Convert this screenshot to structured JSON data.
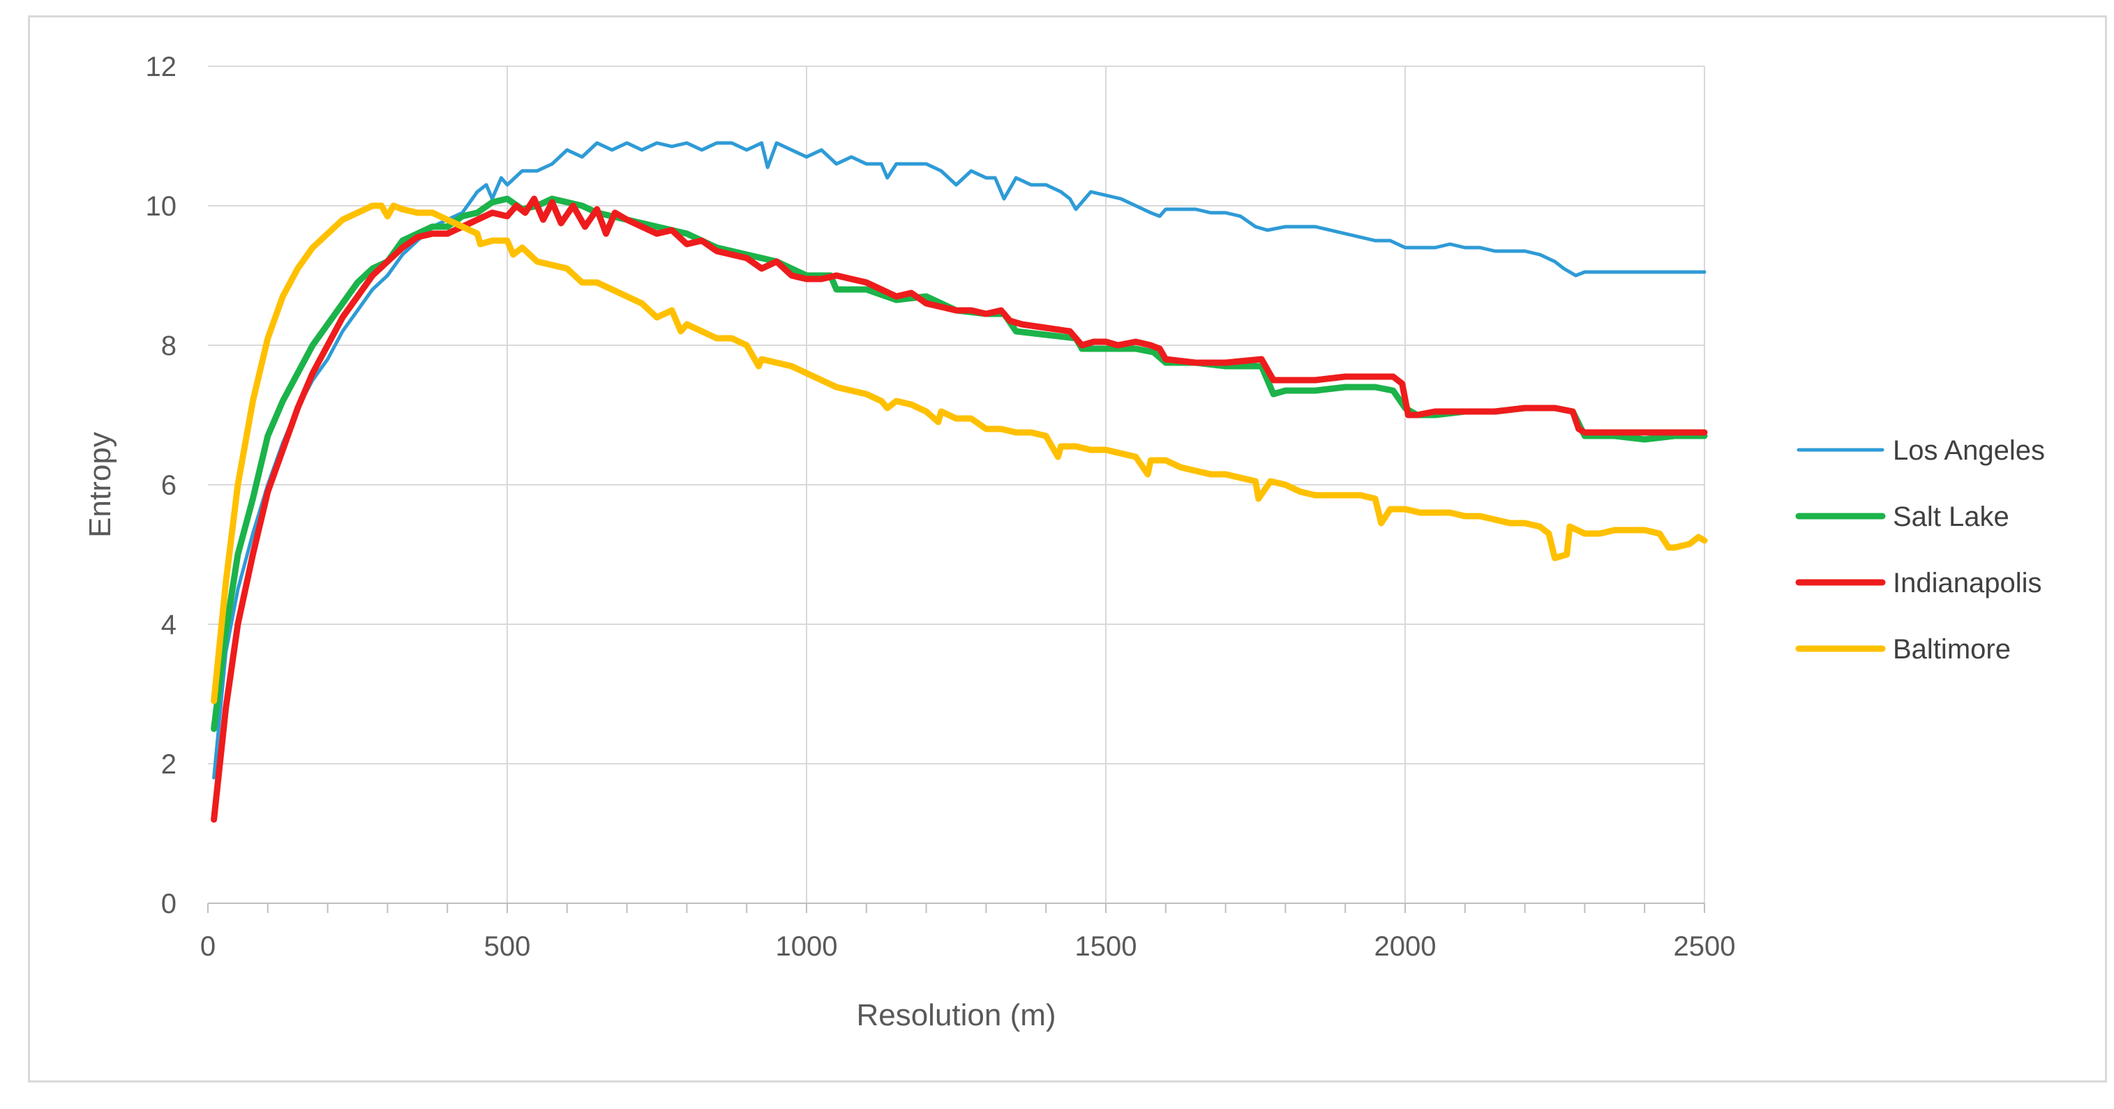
{
  "chart_data": {
    "type": "line",
    "title": "",
    "xlabel": "Resolution (m)",
    "ylabel": "Entropy",
    "xlim": [
      0,
      2500
    ],
    "ylim": [
      0,
      12
    ],
    "xticks": [
      0,
      500,
      1000,
      1500,
      2000,
      2500
    ],
    "yticks": [
      0,
      2,
      4,
      6,
      8,
      10,
      12
    ],
    "grid": true,
    "legend_position": "right",
    "series": [
      {
        "name": "Los Angeles",
        "color": "#2e9bd6",
        "x": [
          10,
          30,
          50,
          75,
          100,
          125,
          150,
          175,
          200,
          225,
          250,
          275,
          300,
          325,
          350,
          375,
          400,
          425,
          450,
          465,
          475,
          490,
          500,
          525,
          550,
          575,
          600,
          625,
          650,
          675,
          700,
          725,
          750,
          775,
          800,
          825,
          850,
          875,
          900,
          925,
          935,
          950,
          975,
          1000,
          1025,
          1050,
          1075,
          1100,
          1125,
          1135,
          1150,
          1175,
          1200,
          1225,
          1250,
          1275,
          1300,
          1315,
          1330,
          1350,
          1375,
          1400,
          1425,
          1440,
          1450,
          1475,
          1500,
          1525,
          1550,
          1575,
          1590,
          1600,
          1625,
          1650,
          1675,
          1700,
          1725,
          1750,
          1770,
          1800,
          1825,
          1850,
          1875,
          1900,
          1925,
          1950,
          1975,
          2000,
          2025,
          2050,
          2075,
          2100,
          2125,
          2150,
          2175,
          2200,
          2225,
          2250,
          2265,
          2285,
          2300,
          2350,
          2400,
          2450,
          2500
        ],
        "y": [
          1.8,
          3.6,
          4.5,
          5.3,
          6.0,
          6.6,
          7.1,
          7.5,
          7.8,
          8.2,
          8.5,
          8.8,
          9.0,
          9.3,
          9.5,
          9.7,
          9.8,
          9.9,
          10.2,
          10.3,
          10.1,
          10.4,
          10.3,
          10.5,
          10.5,
          10.6,
          10.8,
          10.7,
          10.9,
          10.8,
          10.9,
          10.8,
          10.9,
          10.85,
          10.9,
          10.8,
          10.9,
          10.9,
          10.8,
          10.9,
          10.55,
          10.9,
          10.8,
          10.7,
          10.8,
          10.6,
          10.7,
          10.6,
          10.6,
          10.4,
          10.6,
          10.6,
          10.6,
          10.5,
          10.3,
          10.5,
          10.4,
          10.4,
          10.1,
          10.4,
          10.3,
          10.3,
          10.2,
          10.1,
          9.95,
          10.2,
          10.15,
          10.1,
          10.0,
          9.9,
          9.85,
          9.95,
          9.95,
          9.95,
          9.9,
          9.9,
          9.85,
          9.7,
          9.65,
          9.7,
          9.7,
          9.7,
          9.65,
          9.6,
          9.55,
          9.5,
          9.5,
          9.4,
          9.4,
          9.4,
          9.45,
          9.4,
          9.4,
          9.35,
          9.35,
          9.35,
          9.3,
          9.2,
          9.1,
          9.0,
          9.05,
          9.05,
          9.05,
          9.05,
          9.05
        ]
      },
      {
        "name": "Salt Lake",
        "color": "#1bb34a",
        "x": [
          10,
          30,
          50,
          75,
          100,
          125,
          150,
          175,
          200,
          225,
          250,
          275,
          300,
          325,
          350,
          375,
          400,
          425,
          450,
          475,
          500,
          525,
          550,
          575,
          600,
          625,
          650,
          675,
          700,
          750,
          800,
          850,
          900,
          950,
          1000,
          1040,
          1050,
          1100,
          1150,
          1200,
          1250,
          1300,
          1330,
          1350,
          1400,
          1450,
          1460,
          1500,
          1550,
          1580,
          1600,
          1650,
          1700,
          1760,
          1780,
          1800,
          1850,
          1900,
          1950,
          1980,
          2000,
          2020,
          2050,
          2100,
          2150,
          2200,
          2250,
          2280,
          2300,
          2350,
          2400,
          2450,
          2500
        ],
        "y": [
          2.5,
          3.9,
          5.0,
          5.8,
          6.7,
          7.2,
          7.6,
          8.0,
          8.3,
          8.6,
          8.9,
          9.1,
          9.2,
          9.5,
          9.6,
          9.7,
          9.7,
          9.85,
          9.9,
          10.05,
          10.1,
          9.95,
          10.0,
          10.1,
          10.05,
          10.0,
          9.9,
          9.85,
          9.8,
          9.7,
          9.6,
          9.4,
          9.3,
          9.2,
          9.0,
          9.0,
          8.8,
          8.8,
          8.65,
          8.7,
          8.5,
          8.45,
          8.45,
          8.2,
          8.15,
          8.1,
          7.95,
          7.95,
          7.95,
          7.9,
          7.75,
          7.75,
          7.7,
          7.7,
          7.3,
          7.35,
          7.35,
          7.4,
          7.4,
          7.35,
          7.1,
          7.0,
          7.0,
          7.05,
          7.05,
          7.1,
          7.1,
          7.05,
          6.7,
          6.7,
          6.65,
          6.7,
          6.7
        ]
      },
      {
        "name": "Indianapolis",
        "color": "#ee1c1c",
        "x": [
          10,
          30,
          50,
          75,
          100,
          125,
          150,
          175,
          200,
          225,
          250,
          275,
          300,
          325,
          350,
          375,
          400,
          425,
          450,
          475,
          500,
          515,
          530,
          545,
          560,
          575,
          590,
          610,
          630,
          650,
          665,
          680,
          700,
          725,
          750,
          775,
          800,
          825,
          850,
          875,
          900,
          925,
          950,
          975,
          1000,
          1025,
          1050,
          1075,
          1100,
          1125,
          1150,
          1175,
          1200,
          1225,
          1250,
          1275,
          1300,
          1325,
          1340,
          1360,
          1400,
          1440,
          1460,
          1480,
          1500,
          1520,
          1550,
          1575,
          1590,
          1600,
          1650,
          1700,
          1760,
          1780,
          1800,
          1850,
          1900,
          1950,
          1980,
          1995,
          2005,
          2020,
          2050,
          2100,
          2150,
          2200,
          2250,
          2280,
          2290,
          2300,
          2350,
          2400,
          2450,
          2500
        ],
        "y": [
          1.2,
          2.8,
          4.0,
          5.0,
          5.9,
          6.5,
          7.1,
          7.6,
          8.0,
          8.4,
          8.7,
          9.0,
          9.2,
          9.4,
          9.55,
          9.6,
          9.6,
          9.7,
          9.8,
          9.9,
          9.85,
          10.0,
          9.9,
          10.1,
          9.8,
          10.05,
          9.75,
          10.0,
          9.7,
          9.95,
          9.6,
          9.9,
          9.8,
          9.7,
          9.6,
          9.65,
          9.45,
          9.5,
          9.35,
          9.3,
          9.25,
          9.1,
          9.2,
          9.0,
          8.95,
          8.95,
          9.0,
          8.95,
          8.9,
          8.8,
          8.7,
          8.75,
          8.6,
          8.55,
          8.5,
          8.5,
          8.45,
          8.5,
          8.35,
          8.3,
          8.25,
          8.2,
          8.0,
          8.05,
          8.05,
          8.0,
          8.05,
          8.0,
          7.95,
          7.8,
          7.75,
          7.75,
          7.8,
          7.5,
          7.5,
          7.5,
          7.55,
          7.55,
          7.55,
          7.45,
          7.0,
          7.0,
          7.05,
          7.05,
          7.05,
          7.1,
          7.1,
          7.05,
          6.8,
          6.75,
          6.75,
          6.75,
          6.75,
          6.75
        ]
      },
      {
        "name": "Baltimore",
        "color": "#ffc000",
        "x": [
          10,
          30,
          50,
          75,
          100,
          125,
          150,
          175,
          200,
          225,
          250,
          275,
          290,
          300,
          310,
          325,
          350,
          375,
          400,
          425,
          450,
          455,
          475,
          500,
          510,
          525,
          550,
          575,
          600,
          625,
          650,
          675,
          700,
          725,
          750,
          775,
          790,
          800,
          825,
          850,
          875,
          900,
          920,
          925,
          950,
          975,
          1000,
          1025,
          1050,
          1075,
          1100,
          1125,
          1135,
          1150,
          1175,
          1200,
          1220,
          1225,
          1250,
          1275,
          1300,
          1325,
          1350,
          1375,
          1400,
          1420,
          1425,
          1450,
          1475,
          1500,
          1525,
          1550,
          1570,
          1575,
          1600,
          1625,
          1650,
          1675,
          1700,
          1725,
          1750,
          1755,
          1775,
          1800,
          1825,
          1850,
          1875,
          1900,
          1925,
          1950,
          1960,
          1975,
          2000,
          2025,
          2050,
          2075,
          2100,
          2125,
          2150,
          2175,
          2200,
          2225,
          2240,
          2250,
          2270,
          2275,
          2300,
          2325,
          2350,
          2375,
          2400,
          2425,
          2440,
          2450,
          2475,
          2490,
          2500
        ],
        "y": [
          2.9,
          4.6,
          6.0,
          7.2,
          8.1,
          8.7,
          9.1,
          9.4,
          9.6,
          9.8,
          9.9,
          10.0,
          10.0,
          9.85,
          10.0,
          9.95,
          9.9,
          9.9,
          9.8,
          9.7,
          9.6,
          9.45,
          9.5,
          9.5,
          9.3,
          9.4,
          9.2,
          9.15,
          9.1,
          8.9,
          8.9,
          8.8,
          8.7,
          8.6,
          8.4,
          8.5,
          8.2,
          8.3,
          8.2,
          8.1,
          8.1,
          8.0,
          7.7,
          7.8,
          7.75,
          7.7,
          7.6,
          7.5,
          7.4,
          7.35,
          7.3,
          7.2,
          7.1,
          7.2,
          7.15,
          7.05,
          6.9,
          7.05,
          6.95,
          6.95,
          6.8,
          6.8,
          6.75,
          6.75,
          6.7,
          6.4,
          6.55,
          6.55,
          6.5,
          6.5,
          6.45,
          6.4,
          6.15,
          6.35,
          6.35,
          6.25,
          6.2,
          6.15,
          6.15,
          6.1,
          6.05,
          5.8,
          6.05,
          6.0,
          5.9,
          5.85,
          5.85,
          5.85,
          5.85,
          5.8,
          5.45,
          5.65,
          5.65,
          5.6,
          5.6,
          5.6,
          5.55,
          5.55,
          5.5,
          5.45,
          5.45,
          5.4,
          5.3,
          4.95,
          5.0,
          5.4,
          5.3,
          5.3,
          5.35,
          5.35,
          5.35,
          5.3,
          5.1,
          5.1,
          5.15,
          5.25,
          5.2
        ]
      }
    ]
  }
}
